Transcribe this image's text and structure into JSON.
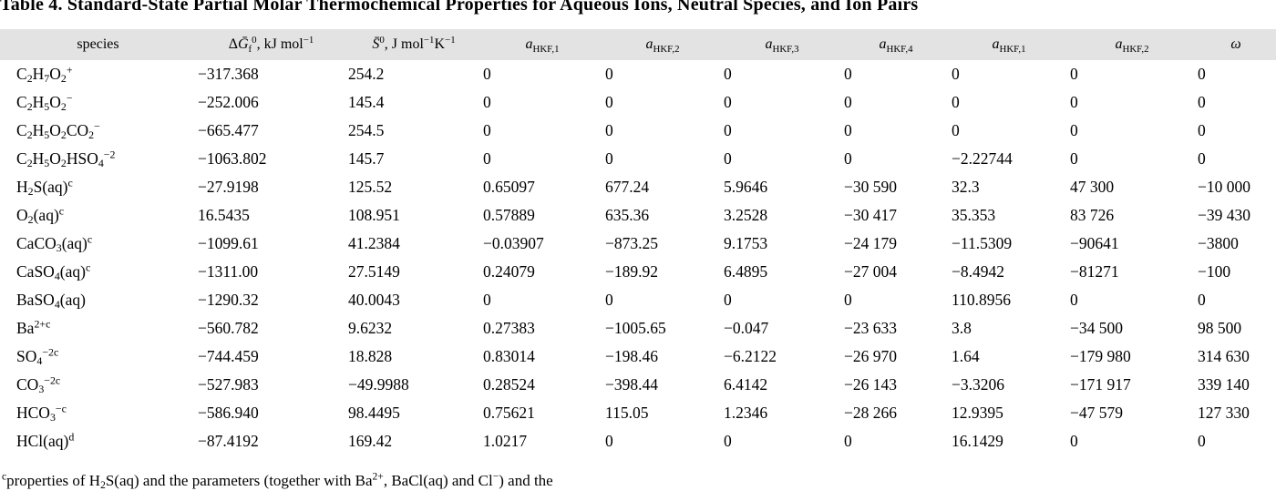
{
  "title": "Table 4. Standard-State Partial Molar Thermochemical Properties for Aqueous Ions, Neutral Species, and Ion Pairs",
  "table": {
    "headers": [
      "species",
      "Δ~{Ḡ}_{f}^{0}, kJ mol^{−1}",
      "~{S̄}^{0}, J mol^{−1}K^{−1}",
      "~{a}_{HKF,1}",
      "~{a}_{HKF,2}",
      "~{a}_{HKF,3}",
      "~{a}_{HKF,4}",
      "~{a}_{HKF,1}",
      "~{a}_{HKF,2}",
      "~{ω}"
    ],
    "rows": [
      [
        "C_{2}H_{7}O_{2}^{+}",
        "−317.368",
        "254.2",
        "0",
        "0",
        "0",
        "0",
        "0",
        "0",
        "0"
      ],
      [
        "C_{2}H_{5}O_{2}^{−}",
        "−252.006",
        "145.4",
        "0",
        "0",
        "0",
        "0",
        "0",
        "0",
        "0"
      ],
      [
        "C_{2}H_{5}O_{2}CO_{2}^{−}",
        "−665.477",
        "254.5",
        "0",
        "0",
        "0",
        "0",
        "0",
        "0",
        "0"
      ],
      [
        "C_{2}H_{5}O_{2}HSO_{4}^{−2}",
        "−1063.802",
        "145.7",
        "0",
        "0",
        "0",
        "0",
        "−2.22744",
        "0",
        "0"
      ],
      [
        "H_{2}S(aq)^{c}",
        "−27.9198",
        "125.52",
        "0.65097",
        "677.24",
        "5.9646",
        "−30 590",
        "32.3",
        "47 300",
        "−10 000"
      ],
      [
        "O_{2}(aq)^{c}",
        "16.5435",
        "108.951",
        "0.57889",
        "635.36",
        "3.2528",
        "−30 417",
        "35.353",
        "83 726",
        "−39 430"
      ],
      [
        "CaCO_{3}(aq)^{c}",
        "−1099.61",
        "41.2384",
        "−0.03907",
        "−873.25",
        "9.1753",
        "−24 179",
        "−11.5309",
        "−90641",
        "−3800"
      ],
      [
        "CaSO_{4}(aq)^{c}",
        "−1311.00",
        "27.5149",
        "0.24079",
        "−189.92",
        "6.4895",
        "−27 004",
        "−8.4942",
        "−81271",
        "−100"
      ],
      [
        "BaSO_{4}(aq)",
        "−1290.32",
        "40.0043",
        "0",
        "0",
        "0",
        "0",
        "110.8956",
        "0",
        "0"
      ],
      [
        "Ba^{2+c}",
        "−560.782",
        "9.6232",
        "0.27383",
        "−1005.65",
        "−0.047",
        "−23 633",
        "3.8",
        "−34 500",
        "98 500"
      ],
      [
        "SO_{4}^{−2c}",
        "−744.459",
        "18.828",
        "0.83014",
        "−198.46",
        "−6.2122",
        "−26 970",
        "1.64",
        "−179 980",
        "314 630"
      ],
      [
        "CO_{3}^{−2c}",
        "−527.983",
        "−49.9988",
        "0.28524",
        "−398.44",
        "6.4142",
        "−26 143",
        "−3.3206",
        "−171 917",
        "339 140"
      ],
      [
        "HCO_{3}^{−c}",
        "−586.940",
        "98.4495",
        "0.75621",
        "115.05",
        "1.2346",
        "−28 266",
        "12.9395",
        "−47 579",
        "127 330"
      ],
      [
        "HCl(aq)^{d}",
        "−87.4192",
        "169.42",
        "1.0217",
        "0",
        "0",
        "0",
        "16.1429",
        "0",
        "0"
      ]
    ]
  },
  "footnote": "^{c}properties of H_{2}S(aq) and the parameters (together with Ba^{2+}, BaCl(aq) and Cl^{−}) and the"
}
